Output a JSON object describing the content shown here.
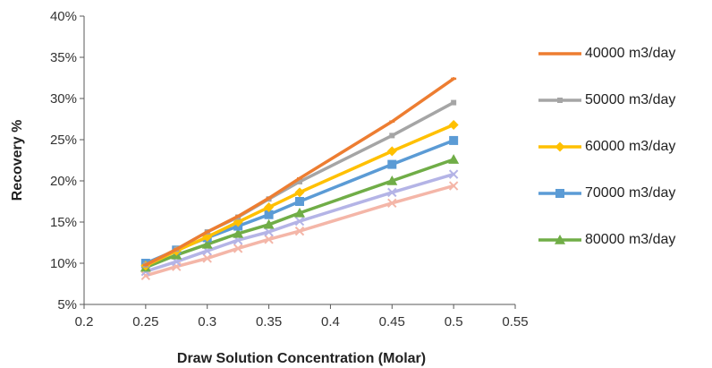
{
  "chart_data": {
    "type": "line",
    "title": "",
    "xlabel": "Draw Solution Concentration (Molar)",
    "ylabel": "Recovery %",
    "xlim": [
      0.2,
      0.55
    ],
    "ylim": [
      5,
      40
    ],
    "x_ticks": [
      "0.2",
      "0.25",
      "0.3",
      "0.35",
      "0.4",
      "0.45",
      "0.5",
      "0.55"
    ],
    "y_ticks": [
      "5%",
      "10%",
      "15%",
      "20%",
      "25%",
      "30%",
      "35%",
      "40%"
    ],
    "grid": false,
    "legend_position": "right",
    "series": [
      {
        "name": "40000 m3/day",
        "color": "#ED7D31",
        "marker": "dash",
        "x": [
          0.25,
          0.275,
          0.3,
          0.325,
          0.35,
          0.375,
          0.45,
          0.5
        ],
        "y": [
          9.8,
          11.7,
          13.8,
          15.7,
          17.9,
          20.3,
          27.2,
          32.4
        ]
      },
      {
        "name": "50000 m3/day",
        "color": "#A5A5A5",
        "marker": "square-small",
        "x": [
          0.25,
          0.275,
          0.3,
          0.325,
          0.35,
          0.375,
          0.45,
          0.5
        ],
        "y": [
          9.8,
          11.7,
          13.8,
          15.6,
          17.8,
          19.9,
          25.5,
          29.5
        ]
      },
      {
        "name": "60000 m3/day",
        "color": "#FFC000",
        "marker": "diamond",
        "x": [
          0.25,
          0.275,
          0.3,
          0.325,
          0.35,
          0.375,
          0.45,
          0.5
        ],
        "y": [
          9.7,
          11.5,
          13.2,
          15.0,
          16.8,
          18.6,
          23.6,
          26.8
        ]
      },
      {
        "name": "70000 m3/day",
        "color": "#5B9BD5",
        "marker": "square",
        "x": [
          0.25,
          0.275,
          0.3,
          0.325,
          0.35,
          0.375,
          0.45,
          0.5
        ],
        "y": [
          10.0,
          11.6,
          13.1,
          14.5,
          15.9,
          17.5,
          22.0,
          24.9
        ]
      },
      {
        "name": "80000 m3/day",
        "color": "#70AD47",
        "marker": "triangle",
        "x": [
          0.25,
          0.275,
          0.3,
          0.325,
          0.35,
          0.375,
          0.45,
          0.5
        ],
        "y": [
          9.5,
          11.0,
          12.3,
          13.6,
          14.7,
          16.1,
          20.0,
          22.6
        ]
      },
      {
        "color": "#B4B4E6",
        "marker": "x",
        "x": [
          0.25,
          0.275,
          0.3,
          0.325,
          0.35,
          0.375,
          0.45,
          0.5
        ],
        "y": [
          9.0,
          10.2,
          11.5,
          12.8,
          13.8,
          15.1,
          18.6,
          20.8
        ]
      },
      {
        "color": "#F4B6A8",
        "marker": "x",
        "x": [
          0.25,
          0.275,
          0.3,
          0.325,
          0.35,
          0.375,
          0.45,
          0.5
        ],
        "y": [
          8.5,
          9.6,
          10.6,
          11.8,
          12.9,
          13.9,
          17.3,
          19.4
        ]
      }
    ]
  }
}
